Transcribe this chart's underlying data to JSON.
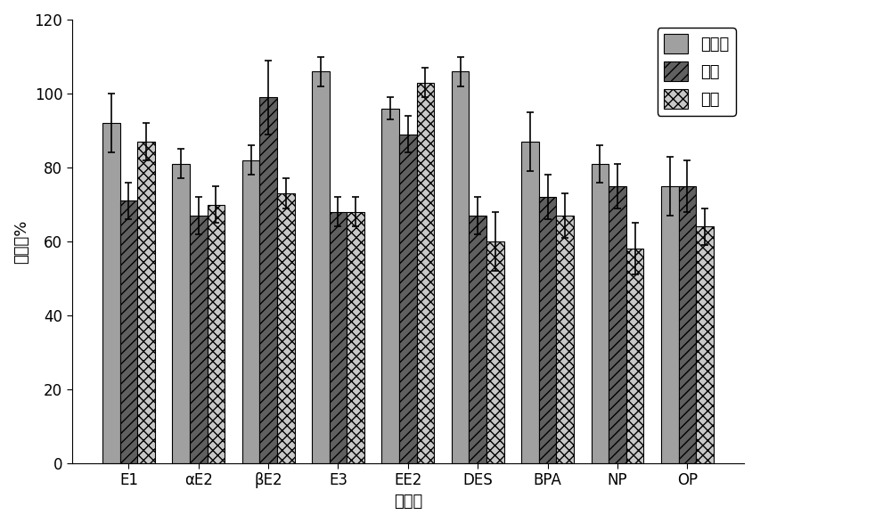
{
  "categories": [
    "E1",
    "αE2",
    "βE2",
    "E3",
    "EE2",
    "DES",
    "BPA",
    "NP",
    "OP"
  ],
  "series": {
    "自来水": [
      92,
      81,
      82,
      106,
      96,
      106,
      87,
      81,
      75
    ],
    "河水": [
      71,
      67,
      99,
      68,
      89,
      67,
      72,
      75,
      75
    ],
    "污水": [
      87,
      70,
      73,
      68,
      103,
      60,
      67,
      58,
      64
    ]
  },
  "errors": {
    "自来水": [
      8,
      4,
      4,
      4,
      3,
      4,
      8,
      5,
      8
    ],
    "河水": [
      5,
      5,
      10,
      4,
      5,
      5,
      6,
      6,
      7
    ],
    "污水": [
      5,
      5,
      4,
      4,
      4,
      8,
      6,
      7,
      5
    ]
  },
  "ylabel": "回收率%",
  "xlabel": "雌激素",
  "ylim": [
    0,
    120
  ],
  "yticks": [
    0,
    20,
    40,
    60,
    80,
    100,
    120
  ],
  "bar_colors": [
    "#a0a0a0",
    "#606060",
    "#c8c8c8"
  ],
  "hatch_patterns": [
    "",
    "///",
    "xxx"
  ],
  "legend_labels": [
    "自来水",
    "河水",
    "污水"
  ],
  "title_fontsize": 13,
  "axis_fontsize": 13,
  "tick_fontsize": 12,
  "legend_fontsize": 13,
  "background_color": "#ffffff",
  "bar_width": 0.25,
  "edge_color": "#000000"
}
